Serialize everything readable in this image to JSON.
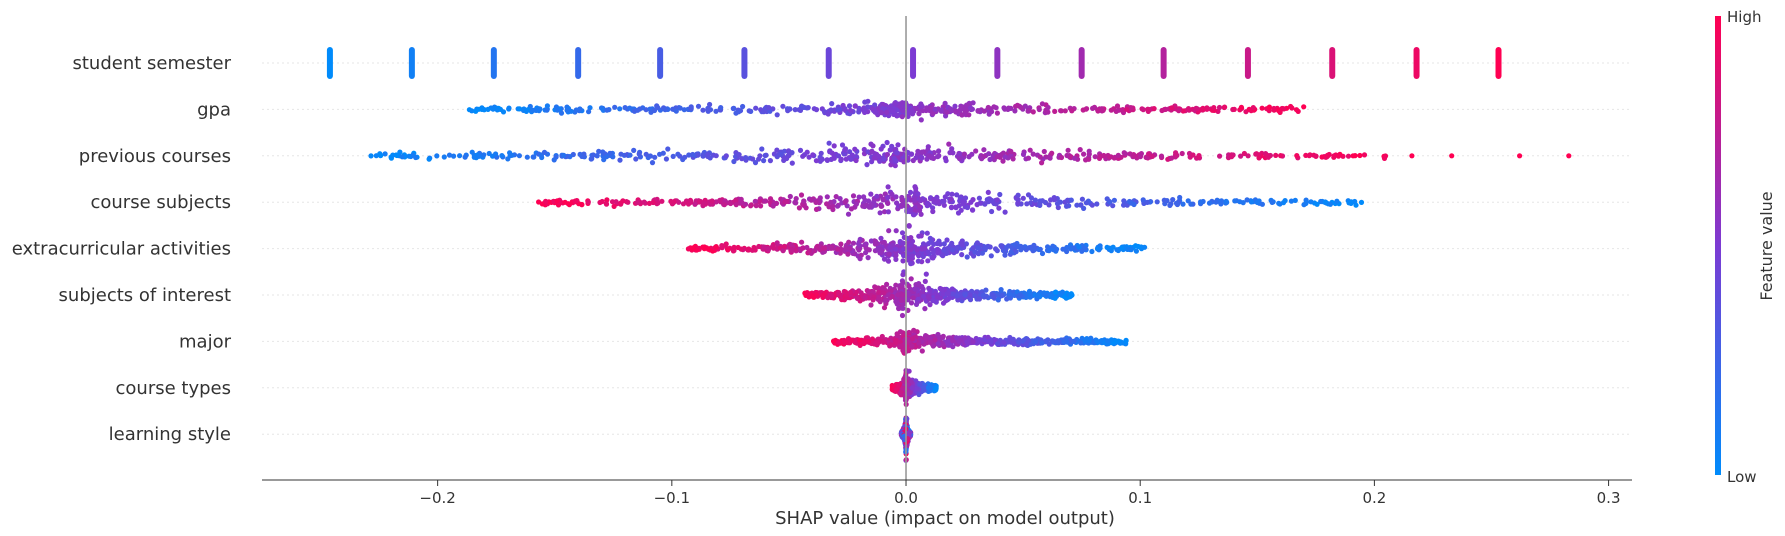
{
  "chart_data": {
    "type": "scatter",
    "subtype": "beeswarm",
    "title": "",
    "xlabel": "SHAP value (impact on model output)",
    "ylabel": "",
    "xlim": [
      -0.275,
      0.31
    ],
    "xticks": [
      -0.2,
      -0.1,
      0.0,
      0.1,
      0.2,
      0.3
    ],
    "xtick_labels": [
      "−0.2",
      "−0.1",
      "0.0",
      "0.1",
      "0.2",
      "0.3"
    ],
    "grid": false,
    "zero_line": 0.0,
    "colorbar": {
      "label": "Feature value",
      "high_label": "High",
      "low_label": "Low",
      "low_color": "#008bfb",
      "mid_color": "#7c3bd3",
      "high_color": "#ff0052",
      "placement": "right"
    },
    "features": [
      {
        "name": "student semester",
        "kind": "discrete",
        "levels": [
          {
            "x": -0.246,
            "value": 0.0
          },
          {
            "x": -0.211,
            "value": 0.07
          },
          {
            "x": -0.176,
            "value": 0.14
          },
          {
            "x": -0.14,
            "value": 0.21
          },
          {
            "x": -0.105,
            "value": 0.29
          },
          {
            "x": -0.069,
            "value": 0.36
          },
          {
            "x": -0.033,
            "value": 0.43
          },
          {
            "x": 0.003,
            "value": 0.5
          },
          {
            "x": 0.039,
            "value": 0.57
          },
          {
            "x": 0.075,
            "value": 0.64
          },
          {
            "x": 0.11,
            "value": 0.71
          },
          {
            "x": 0.146,
            "value": 0.79
          },
          {
            "x": 0.182,
            "value": 0.86
          },
          {
            "x": 0.218,
            "value": 0.93
          },
          {
            "x": 0.253,
            "value": 1.0
          }
        ]
      },
      {
        "name": "gpa",
        "kind": "continuous",
        "range": [
          -0.189,
          0.171
        ],
        "center": -0.005,
        "low_side": "left",
        "spread": 5,
        "outliers": []
      },
      {
        "name": "previous courses",
        "kind": "continuous",
        "range": [
          -0.232,
          0.205
        ],
        "center": -0.005,
        "low_side": "left",
        "spread": 8,
        "outliers": [
          {
            "x": 0.216,
            "value": 1.0
          },
          {
            "x": 0.233,
            "value": 1.0
          },
          {
            "x": 0.262,
            "value": 1.0
          },
          {
            "x": 0.283,
            "value": 1.0
          }
        ]
      },
      {
        "name": "course subjects",
        "kind": "continuous",
        "range": [
          -0.158,
          0.195
        ],
        "center": 0.004,
        "low_side": "right",
        "spread": 11,
        "outliers": []
      },
      {
        "name": "extracurricular activities",
        "kind": "continuous",
        "range": [
          -0.093,
          0.102
        ],
        "center": 0.002,
        "low_side": "right",
        "spread": 14,
        "outliers": []
      },
      {
        "name": "subjects of interest",
        "kind": "continuous",
        "range": [
          -0.044,
          0.071
        ],
        "center": -0.002,
        "low_side": "right",
        "spread": 12,
        "outliers": []
      },
      {
        "name": "major",
        "kind": "continuous",
        "range": [
          -0.032,
          0.094
        ],
        "center": -0.001,
        "low_side": "right",
        "spread": 7,
        "outliers": []
      },
      {
        "name": "course types",
        "kind": "continuous",
        "range": [
          -0.006,
          0.013
        ],
        "center": 0.0,
        "low_side": "right",
        "spread": 10,
        "outliers": []
      },
      {
        "name": "learning style",
        "kind": "continuous",
        "range": [
          -0.002,
          0.002
        ],
        "center": 0.0,
        "low_side": "mixed",
        "spread": 14,
        "outliers": []
      }
    ]
  }
}
